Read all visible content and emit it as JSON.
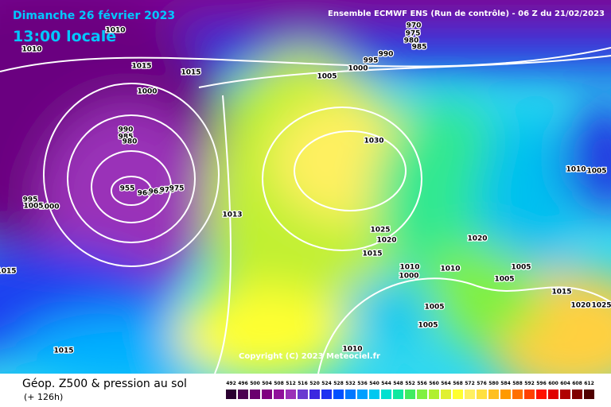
{
  "header": {
    "date": "Dimanche 26 février 2023",
    "time": "13:00 locale",
    "model": "Ensemble ECMWF ENS  (Run de contrôle)  -  06 Z du 21/02/2023"
  },
  "copyright": "Copyright (C) 2023 Meteociel.fr",
  "footer": {
    "title": "Géop. Z500 & pression au sol",
    "lead": "(+ 126h)"
  },
  "isobar_labels": [
    "970",
    "975",
    "980",
    "985",
    "990",
    "995",
    "1000",
    "1005",
    "1010",
    "1010",
    "1015",
    "1015",
    "1000",
    "990",
    "985",
    "980",
    "955",
    "960",
    "965",
    "970",
    "975",
    "995",
    "1000",
    "1005",
    "1030",
    "1013",
    "1025",
    "1020",
    "1015",
    "1010",
    "1000",
    "1010",
    "1005",
    "1005",
    "1015",
    "1020",
    "1025",
    "1005",
    "1005",
    "1010",
    "1015",
    "1015",
    "1010",
    "1005",
    "1020"
  ],
  "scale": [
    {
      "label": "492",
      "color": "#2a0030"
    },
    {
      "label": "496",
      "color": "#4b0050"
    },
    {
      "label": "500",
      "color": "#6a006e"
    },
    {
      "label": "504",
      "color": "#800080"
    },
    {
      "label": "508",
      "color": "#90109a"
    },
    {
      "label": "512",
      "color": "#9a30b8"
    },
    {
      "label": "516",
      "color": "#6a3ad0"
    },
    {
      "label": "520",
      "color": "#3c28e0"
    },
    {
      "label": "524",
      "color": "#1e32f0"
    },
    {
      "label": "528",
      "color": "#0050ff"
    },
    {
      "label": "532",
      "color": "#0078ff"
    },
    {
      "label": "536",
      "color": "#00a0ff"
    },
    {
      "label": "540",
      "color": "#00c8f0"
    },
    {
      "label": "544",
      "color": "#00e0d0"
    },
    {
      "label": "548",
      "color": "#10e8a0"
    },
    {
      "label": "552",
      "color": "#40ec60"
    },
    {
      "label": "556",
      "color": "#80f040"
    },
    {
      "label": "560",
      "color": "#b0f030"
    },
    {
      "label": "564",
      "color": "#e0f030"
    },
    {
      "label": "568",
      "color": "#ffff30"
    },
    {
      "label": "572",
      "color": "#fff060"
    },
    {
      "label": "576",
      "color": "#ffe040"
    },
    {
      "label": "580",
      "color": "#ffc020"
    },
    {
      "label": "584",
      "color": "#ff9a00"
    },
    {
      "label": "588",
      "color": "#ff7000"
    },
    {
      "label": "592",
      "color": "#ff4000"
    },
    {
      "label": "596",
      "color": "#ff1000"
    },
    {
      "label": "600",
      "color": "#e00000"
    },
    {
      "label": "604",
      "color": "#b00000"
    },
    {
      "label": "608",
      "color": "#800000"
    },
    {
      "label": "612",
      "color": "#500000"
    }
  ]
}
